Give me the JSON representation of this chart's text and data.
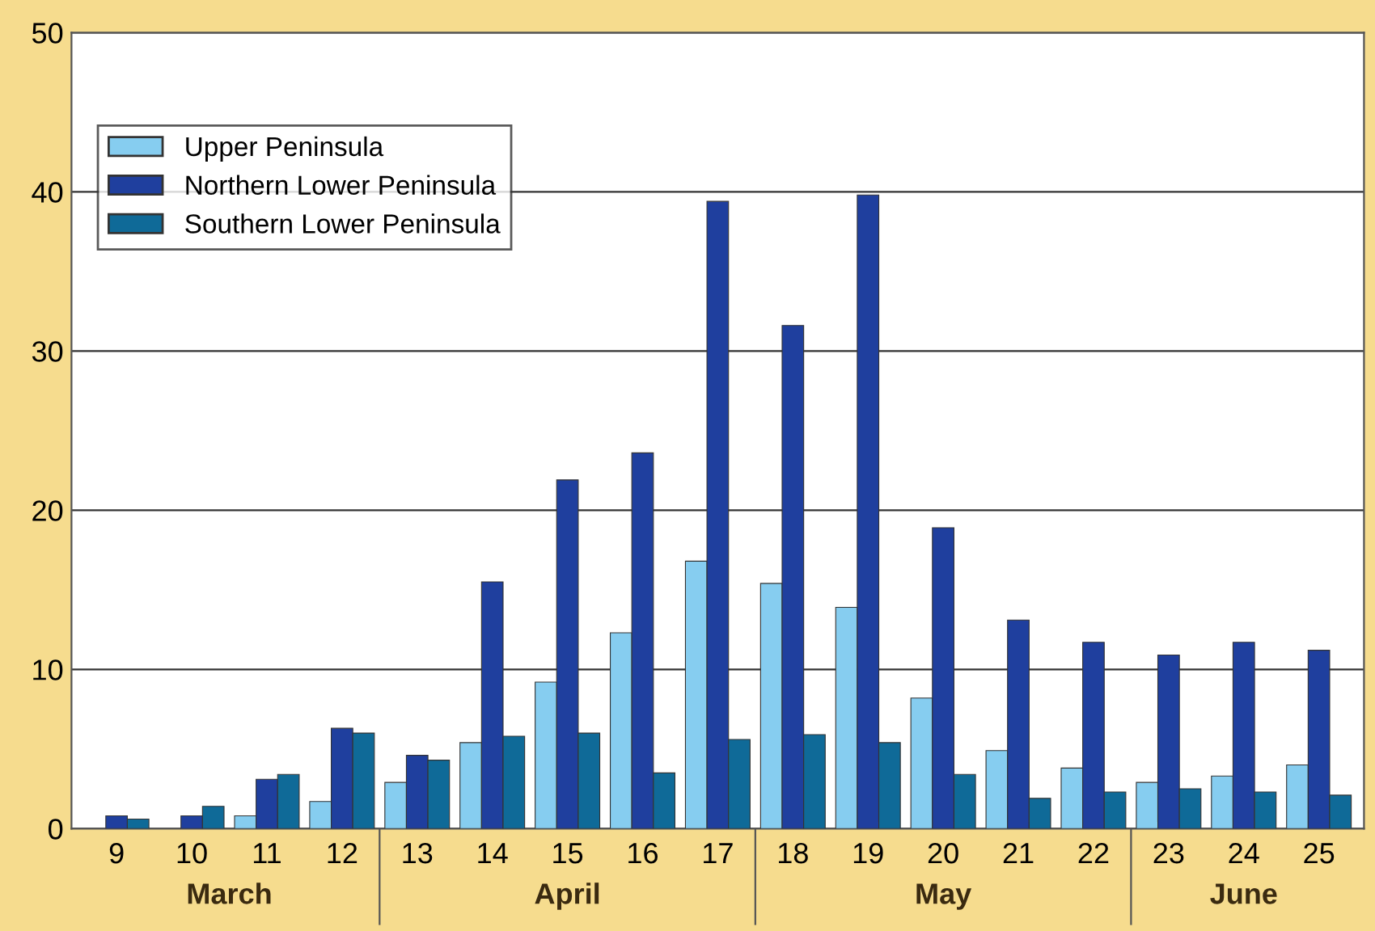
{
  "chart_data": {
    "type": "bar",
    "categories": [
      "9",
      "10",
      "11",
      "12",
      "13",
      "14",
      "15",
      "16",
      "17",
      "18",
      "19",
      "20",
      "21",
      "22",
      "23",
      "24",
      "25"
    ],
    "series": [
      {
        "name": "Upper Peninsula",
        "color": "#86cdf0",
        "values": [
          null,
          null,
          0.8,
          1.7,
          2.9,
          5.4,
          9.2,
          12.3,
          16.8,
          15.4,
          13.9,
          8.2,
          4.9,
          3.8,
          2.9,
          3.3,
          4.0
        ]
      },
      {
        "name": "Northern Lower Peninsula",
        "color": "#1f3f9e",
        "values": [
          0.8,
          0.8,
          3.1,
          6.3,
          4.6,
          15.5,
          21.9,
          23.6,
          39.4,
          31.6,
          39.8,
          18.9,
          13.1,
          11.7,
          10.9,
          11.7,
          11.2
        ]
      },
      {
        "name": "Southern Lower Peninsula",
        "color": "#0f6a98",
        "values": [
          0.6,
          1.4,
          3.4,
          6.0,
          4.3,
          5.8,
          6.0,
          3.5,
          5.6,
          5.9,
          5.4,
          3.4,
          1.9,
          2.3,
          2.5,
          2.3,
          2.1
        ]
      }
    ],
    "annotations": [
      "March",
      "April",
      "May",
      "June"
    ],
    "ylim": [
      0,
      50
    ],
    "yticks": [
      0,
      10,
      20,
      30,
      40,
      50
    ],
    "grid": "y",
    "legend": "top left"
  }
}
